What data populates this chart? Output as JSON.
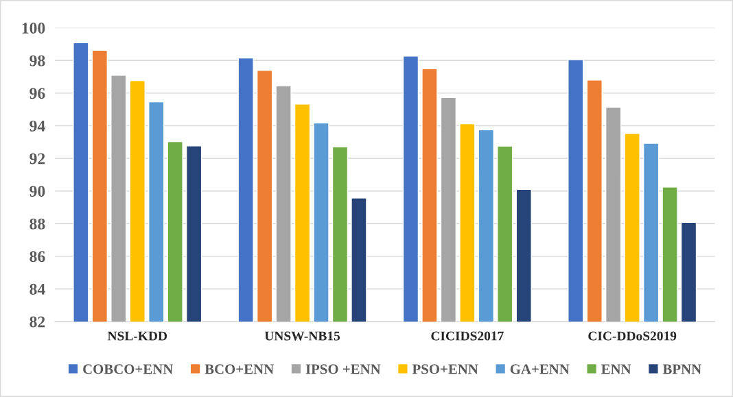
{
  "chart_data": {
    "type": "bar",
    "categories": [
      "NSL-KDD",
      "UNSW-NB15",
      "CICIDS2017",
      "CIC-DDoS2019"
    ],
    "series": [
      {
        "name": "COBCO+ENN",
        "color": "#4472c4",
        "values": [
          99.08,
          98.15,
          98.27,
          98.05
        ]
      },
      {
        "name": "BCO+ENN",
        "color": "#ed7d31",
        "values": [
          98.62,
          97.39,
          97.49,
          96.8
        ]
      },
      {
        "name": "IPSO +ENN",
        "color": "#a5a5a5",
        "values": [
          97.09,
          96.45,
          95.72,
          95.14
        ]
      },
      {
        "name": "PSO+ENN",
        "color": "#ffc000",
        "values": [
          96.76,
          95.32,
          94.12,
          93.53
        ]
      },
      {
        "name": "GA+ENN",
        "color": "#5b9bd5",
        "values": [
          95.46,
          94.17,
          93.75,
          92.92
        ]
      },
      {
        "name": "ENN",
        "color": "#70ad47",
        "values": [
          93.02,
          92.71,
          92.75,
          90.24
        ]
      },
      {
        "name": "BPNN",
        "color": "#264478",
        "values": [
          92.76,
          89.57,
          90.09,
          88.08
        ]
      }
    ],
    "ylim": [
      82,
      100
    ],
    "yticks": [
      82,
      84,
      86,
      88,
      90,
      92,
      94,
      96,
      98,
      100
    ],
    "grid": "y",
    "legend": "bottom"
  }
}
